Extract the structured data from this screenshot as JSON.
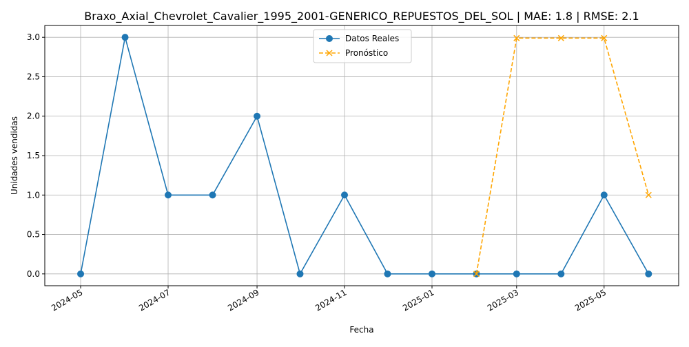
{
  "chart_data": {
    "type": "line",
    "title": "Braxo_Axial_Chevrolet_Cavalier_1995_2001-GENERICO_REPUESTOS_DEL_SOL | MAE: 1.8 | RMSE: 2.1",
    "xlabel": "Fecha",
    "ylabel": "Unidades vendidas",
    "xlim": [
      "2024-04-06",
      "2025-06-22"
    ],
    "ylim": [
      -0.15,
      3.15
    ],
    "x_ticks": [
      "2024-05",
      "2024-07",
      "2024-09",
      "2024-11",
      "2025-01",
      "2025-03",
      "2025-05"
    ],
    "y_ticks": [
      "0.0",
      "0.5",
      "1.0",
      "1.5",
      "2.0",
      "2.5",
      "3.0"
    ],
    "grid": true,
    "legend_position": "upper center",
    "series": [
      {
        "name": "Datos Reales",
        "color": "#1f77b4",
        "style": "solid",
        "marker": "circle",
        "x": [
          "2024-05-01",
          "2024-06-01",
          "2024-07-01",
          "2024-08-01",
          "2024-09-01",
          "2024-10-01",
          "2024-11-01",
          "2024-12-01",
          "2025-01-01",
          "2025-02-01",
          "2025-03-01",
          "2025-04-01",
          "2025-05-01",
          "2025-06-01"
        ],
        "values": [
          0,
          3,
          1,
          1,
          2,
          0,
          1,
          0,
          0,
          0,
          0,
          0,
          1,
          0
        ]
      },
      {
        "name": "Pronóstico",
        "color": "#ffa500",
        "style": "dashed",
        "marker": "x",
        "x": [
          "2025-02-01",
          "2025-03-01",
          "2025-04-01",
          "2025-05-01",
          "2025-06-01"
        ],
        "values": [
          0,
          2.99,
          2.99,
          2.99,
          1
        ]
      }
    ]
  }
}
